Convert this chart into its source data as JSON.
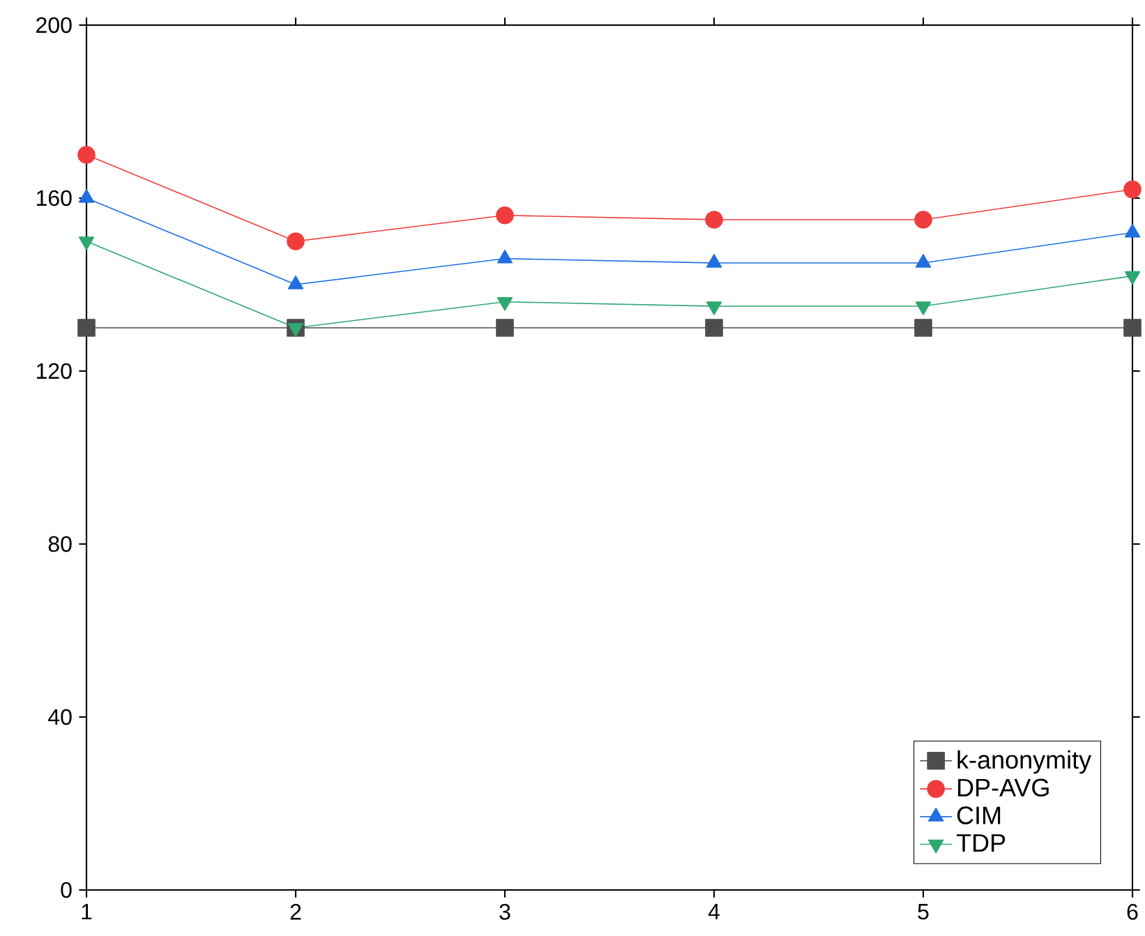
{
  "chart_data": {
    "type": "line",
    "x": [
      1,
      2,
      3,
      4,
      5,
      6
    ],
    "xlim": [
      1,
      6
    ],
    "xticks": [
      1,
      2,
      3,
      4,
      5,
      6
    ],
    "ylim": [
      0,
      200
    ],
    "yticks": [
      0,
      40,
      80,
      120,
      160,
      200
    ],
    "legend": "bottom right",
    "grid": false,
    "series": [
      {
        "name": "k-anonymity",
        "color": "#4d4d4d",
        "marker": "square",
        "values": [
          130,
          130,
          130,
          130,
          130,
          130
        ]
      },
      {
        "name": "DP-AVG",
        "color": "#f03c3c",
        "marker": "circle",
        "values": [
          170,
          150,
          156,
          155,
          155,
          162
        ]
      },
      {
        "name": "CIM",
        "color": "#1f6fe0",
        "marker": "triangle",
        "values": [
          160,
          140,
          146,
          145,
          145,
          152
        ]
      },
      {
        "name": "TDP",
        "color": "#2ea870",
        "marker": "triangle down",
        "values": [
          150,
          130,
          136,
          135,
          135,
          142
        ]
      }
    ]
  }
}
